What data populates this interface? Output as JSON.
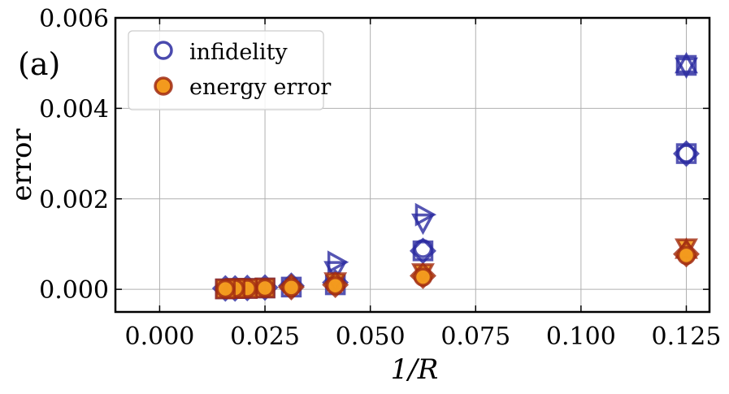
{
  "chart_data": {
    "type": "scatter",
    "panel_label": "(a)",
    "xlabel": "1/R",
    "ylabel": "error",
    "xlim": [
      -0.0105,
      0.1305
    ],
    "ylim": [
      -0.0005,
      0.006
    ],
    "xticks": [
      "0.000",
      "0.025",
      "0.050",
      "0.075",
      "0.100",
      "0.125"
    ],
    "xtick_values": [
      0.0,
      0.025,
      0.05,
      0.075,
      0.1,
      0.125
    ],
    "yticks": [
      "0.000",
      "0.002",
      "0.004",
      "0.006"
    ],
    "ytick_values": [
      0.0,
      0.002,
      0.004,
      0.006
    ],
    "grid": true,
    "legend_position": "top-left",
    "legend": [
      {
        "label": "infidelity",
        "marker": "open-circle",
        "color": "#2a2aa0"
      },
      {
        "label": "energy error",
        "marker": "filled-circle",
        "color": "#f39a1e",
        "edge": "#a02a12"
      }
    ],
    "series": [
      {
        "name": "infidelity",
        "color": "#2a2aa0",
        "points": [
          {
            "x": 0.125,
            "y": 0.00495,
            "marker": "triangle-up"
          },
          {
            "x": 0.125,
            "y": 0.00495,
            "marker": "triangle-down"
          },
          {
            "x": 0.125,
            "y": 0.00495,
            "marker": "square"
          },
          {
            "x": 0.125,
            "y": 0.003,
            "marker": "diamond"
          },
          {
            "x": 0.125,
            "y": 0.003,
            "marker": "circle"
          },
          {
            "x": 0.125,
            "y": 0.003,
            "marker": "square"
          },
          {
            "x": 0.0625,
            "y": 0.00165,
            "marker": "triangle-right"
          },
          {
            "x": 0.0625,
            "y": 0.0015,
            "marker": "triangle-down"
          },
          {
            "x": 0.0625,
            "y": 0.00085,
            "marker": "diamond"
          },
          {
            "x": 0.0625,
            "y": 0.00085,
            "marker": "square"
          },
          {
            "x": 0.0625,
            "y": 0.0009,
            "marker": "circle"
          },
          {
            "x": 0.0417,
            "y": 0.0006,
            "marker": "triangle-right"
          },
          {
            "x": 0.0417,
            "y": 0.00045,
            "marker": "triangle-down"
          },
          {
            "x": 0.0417,
            "y": 0.00015,
            "marker": "diamond"
          },
          {
            "x": 0.0417,
            "y": 0.0001,
            "marker": "square"
          },
          {
            "x": 0.03125,
            "y": 8e-05,
            "marker": "diamond"
          },
          {
            "x": 0.03125,
            "y": 5e-05,
            "marker": "square"
          },
          {
            "x": 0.025,
            "y": 4e-05,
            "marker": "diamond"
          },
          {
            "x": 0.025,
            "y": 3e-05,
            "marker": "square"
          },
          {
            "x": 0.0208,
            "y": 3e-05,
            "marker": "diamond"
          },
          {
            "x": 0.0208,
            "y": 2e-05,
            "marker": "square"
          },
          {
            "x": 0.0179,
            "y": 2e-05,
            "marker": "diamond"
          },
          {
            "x": 0.0179,
            "y": 2e-05,
            "marker": "square"
          },
          {
            "x": 0.0156,
            "y": 2e-05,
            "marker": "diamond"
          },
          {
            "x": 0.0156,
            "y": 1e-05,
            "marker": "square"
          }
        ]
      },
      {
        "name": "energy error",
        "color": "#a02a12",
        "fill": "#f39a1e",
        "points": [
          {
            "x": 0.125,
            "y": 0.00095,
            "marker": "triangle-down"
          },
          {
            "x": 0.125,
            "y": 0.00085,
            "marker": "triangle-up"
          },
          {
            "x": 0.125,
            "y": 0.00078,
            "marker": "diamond"
          },
          {
            "x": 0.125,
            "y": 0.00075,
            "marker": "circle"
          },
          {
            "x": 0.0625,
            "y": 0.0004,
            "marker": "triangle-down"
          },
          {
            "x": 0.0625,
            "y": 0.0003,
            "marker": "diamond"
          },
          {
            "x": 0.0625,
            "y": 0.00027,
            "marker": "circle"
          },
          {
            "x": 0.0417,
            "y": 0.0002,
            "marker": "triangle-down"
          },
          {
            "x": 0.0417,
            "y": 0.0001,
            "marker": "diamond"
          },
          {
            "x": 0.0417,
            "y": 8e-05,
            "marker": "circle"
          },
          {
            "x": 0.03125,
            "y": 5e-05,
            "marker": "diamond"
          },
          {
            "x": 0.03125,
            "y": 4e-05,
            "marker": "circle"
          },
          {
            "x": 0.025,
            "y": 3e-05,
            "marker": "square"
          },
          {
            "x": 0.025,
            "y": 3e-05,
            "marker": "circle"
          },
          {
            "x": 0.0208,
            "y": 2e-05,
            "marker": "square"
          },
          {
            "x": 0.0208,
            "y": 2e-05,
            "marker": "circle"
          },
          {
            "x": 0.0179,
            "y": 2e-05,
            "marker": "square"
          },
          {
            "x": 0.0179,
            "y": 2e-05,
            "marker": "circle"
          },
          {
            "x": 0.0156,
            "y": 1e-05,
            "marker": "square"
          },
          {
            "x": 0.0156,
            "y": 1e-05,
            "marker": "circle"
          }
        ]
      }
    ]
  }
}
